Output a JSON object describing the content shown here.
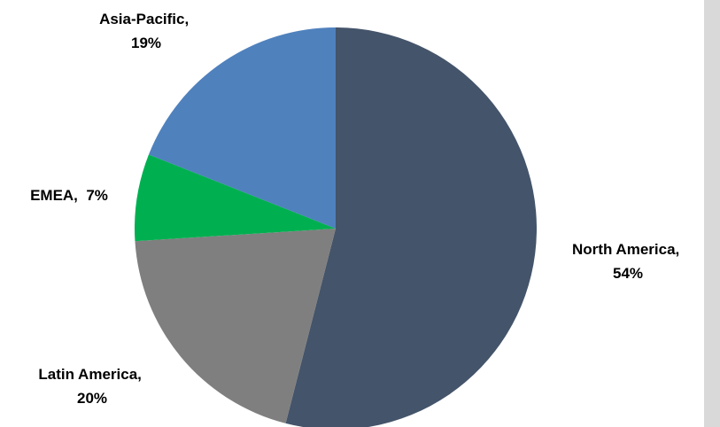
{
  "chart_data": {
    "type": "pie",
    "title": "",
    "slices": [
      {
        "name": "North America",
        "value": 54,
        "label_line1": "North America,",
        "label_line2": "54%",
        "color": "#44546a"
      },
      {
        "name": "Latin America",
        "value": 20,
        "label_line1": "Latin America,",
        "label_line2": "20%",
        "color": "#7f7f7f"
      },
      {
        "name": "EMEA",
        "value": 7,
        "label_line1": "EMEA,  7%",
        "label_line2": "",
        "color": "#00b050"
      },
      {
        "name": "Asia-Pacific",
        "value": 19,
        "label_line1": "Asia-Pacific,",
        "label_line2": "19%",
        "color": "#4f81bd"
      }
    ],
    "legend": "none",
    "start_angle": "12 o'clock",
    "direction": "clockwise"
  }
}
